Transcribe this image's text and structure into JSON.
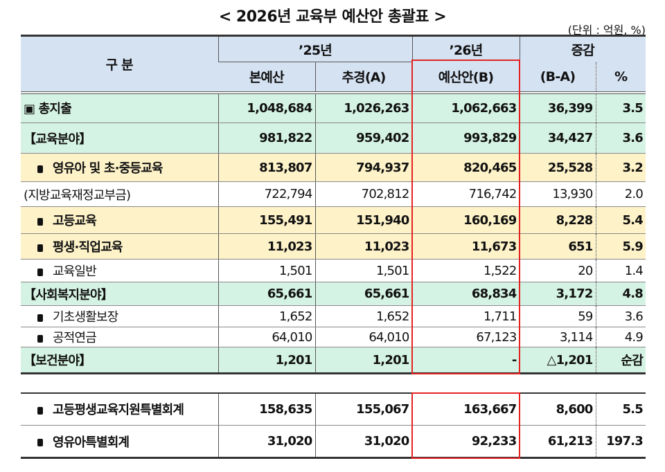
{
  "title": "< 2026년 교육부 예산안 총괄표 >",
  "unit": "(단위 : 억원, %)",
  "header": {
    "category": "구  분",
    "y25": "’25년",
    "y26": "’26년",
    "change": "증감",
    "main_budget": "본예산",
    "supp": "추경(A)",
    "proposal": "예산안(B)",
    "diff": "(B-A)",
    "pct": "%"
  },
  "colors": {
    "header": "#d5e2f2",
    "green": "#d5f3e4",
    "yellow": "#fdf2c8",
    "highlight": "#e52222"
  },
  "rows": [
    {
      "label": "▣ 총지출",
      "v": [
        "1,048,684",
        "1,026,263",
        "1,062,663",
        "36,399",
        "3.5"
      ]
    },
    {
      "label": "【교육분야】",
      "v": [
        "981,822",
        "959,402",
        "993,829",
        "34,427",
        "3.6"
      ]
    },
    {
      "label": "영유아 및 초·중등교육",
      "v": [
        "813,807",
        "794,937",
        "820,465",
        "25,528",
        "3.2"
      ]
    },
    {
      "label": "(지방교육재정교부금)",
      "v": [
        "722,794",
        "702,812",
        "716,742",
        "13,930",
        "2.0"
      ]
    },
    {
      "label": "고등교육",
      "v": [
        "155,491",
        "151,940",
        "160,169",
        "8,228",
        "5.4"
      ]
    },
    {
      "label": "평생·직업교육",
      "v": [
        "11,023",
        "11,023",
        "11,673",
        "651",
        "5.9"
      ]
    },
    {
      "label": "교육일반",
      "v": [
        "1,501",
        "1,501",
        "1,522",
        "20",
        "1.4"
      ]
    },
    {
      "label": "【사회복지분야】",
      "v": [
        "65,661",
        "65,661",
        "68,834",
        "3,172",
        "4.8"
      ]
    },
    {
      "label": "기초생활보장",
      "v": [
        "1,652",
        "1,652",
        "1,711",
        "59",
        "3.6"
      ]
    },
    {
      "label": "공적연금",
      "v": [
        "64,010",
        "64,010",
        "67,123",
        "3,114",
        "4.9"
      ]
    },
    {
      "label": "【보건분야】",
      "v": [
        "1,201",
        "1,201",
        "-",
        "△1,201",
        "순감"
      ]
    },
    {
      "label": "고등평생교육지원특별회계",
      "v": [
        "158,635",
        "155,067",
        "163,667",
        "8,600",
        "5.5"
      ]
    },
    {
      "label": "영유아특별회계",
      "v": [
        "31,020",
        "31,020",
        "92,233",
        "61,213",
        "197.3"
      ]
    }
  ]
}
